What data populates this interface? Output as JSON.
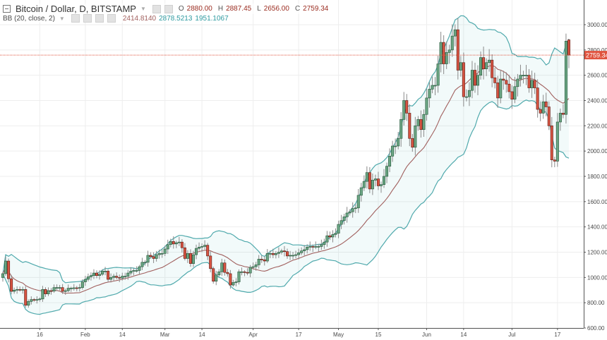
{
  "header": {
    "title": "Bitcoin / Dollar, D, BITSTAMP",
    "ohlc": {
      "o_label": "O",
      "o": "2880.00",
      "h_label": "H",
      "h": "2887.45",
      "l_label": "L",
      "l": "2656.00",
      "c_label": "C",
      "c": "2759.34"
    }
  },
  "indicator": {
    "label": "BB (20, close, 2)",
    "basis": "2414.8140",
    "upper": "2878.5213",
    "lower": "1951.1067"
  },
  "colors": {
    "up": "#6ba583",
    "up_border": "#225437",
    "down": "#d75442",
    "down_border": "#5b1a13",
    "band": "#4fa9ac",
    "basis": "#a1605e",
    "price_line": "#e0533f"
  },
  "chart_data": {
    "type": "candlestick",
    "title": "Bitcoin / Dollar, D, BITSTAMP",
    "start_date": "2017-01-03",
    "ylim": [
      600,
      3000
    ],
    "y_ticks": [
      "3000.00",
      "2800.00",
      "2600.00",
      "2400.00",
      "2200.00",
      "2000.00",
      "1800.00",
      "1600.00",
      "1400.00",
      "1200.00",
      "1000.00",
      "800.00",
      "600.00"
    ],
    "x_ticks": [
      {
        "label": "16",
        "date": "2017-01-16"
      },
      {
        "label": "Feb",
        "date": "2017-02-01"
      },
      {
        "label": "14",
        "date": "2017-02-14"
      },
      {
        "label": "Mar",
        "date": "2017-03-01"
      },
      {
        "label": "14",
        "date": "2017-03-14"
      },
      {
        "label": "Apr",
        "date": "2017-04-01"
      },
      {
        "label": "17",
        "date": "2017-04-17"
      },
      {
        "label": "May",
        "date": "2017-05-01"
      },
      {
        "label": "15",
        "date": "2017-05-15"
      },
      {
        "label": "Jun",
        "date": "2017-06-01"
      },
      {
        "label": "14",
        "date": "2017-06-14"
      },
      {
        "label": "Jul",
        "date": "2017-07-01"
      },
      {
        "label": "17",
        "date": "2017-07-17"
      }
    ],
    "last_price": "2759.34",
    "grid": true,
    "closes": [
      1030,
      1130,
      990,
      890,
      900,
      905,
      900,
      905,
      780,
      810,
      825,
      820,
      825,
      830,
      905,
      870,
      895,
      892,
      920,
      920,
      920,
      890,
      895,
      915,
      915,
      918,
      915,
      920,
      965,
      985,
      1005,
      1015,
      1035,
      1015,
      1025,
      1050,
      1050,
      985,
      1000,
      1010,
      1000,
      995,
      1010,
      1010,
      1035,
      1050,
      1055,
      1055,
      1085,
      1120,
      1120,
      1175,
      1165,
      1150,
      1180,
      1190,
      1190,
      1225,
      1260,
      1285,
      1265,
      1275,
      1280,
      1235,
      1150,
      1190,
      1110,
      1180,
      1230,
      1240,
      1245,
      1255,
      1170,
      1070,
      970,
      1020,
      1045,
      1115,
      1040,
      1030,
      940,
      960,
      965,
      1045,
      1045,
      1040,
      1035,
      1080,
      1085,
      1100,
      1145,
      1140,
      1130,
      1190,
      1190,
      1180,
      1190,
      1200,
      1210,
      1205,
      1170,
      1175,
      1175,
      1180,
      1195,
      1210,
      1220,
      1240,
      1245,
      1240,
      1245,
      1245,
      1260,
      1280,
      1330,
      1320,
      1340,
      1350,
      1420,
      1450,
      1480,
      1510,
      1520,
      1545,
      1550,
      1650,
      1710,
      1760,
      1830,
      1700,
      1770,
      1780,
      1725,
      1735,
      1800,
      1880,
      1960,
      2040,
      2040,
      2100,
      2250,
      2400,
      2300,
      2100,
      2030,
      2200,
      2250,
      2170,
      2290,
      2420,
      2490,
      2520,
      2520,
      2690,
      2860,
      2690,
      2780,
      2800,
      2910,
      2960,
      2640,
      2700,
      2430,
      2430,
      2480,
      2640,
      2520,
      2600,
      2740,
      2650,
      2700,
      2720,
      2580,
      2540,
      2420,
      2570,
      2560,
      2530,
      2470,
      2410,
      2510,
      2570,
      2600,
      2600,
      2600,
      2500,
      2560,
      2500,
      2330,
      2300,
      2390,
      2350,
      2200,
      1930,
      1920,
      2230,
      2300,
      2290,
      2870,
      2759.34
    ],
    "last_candle": {
      "open": 2880.0,
      "high": 2887.45,
      "low": 2656.0,
      "close": 2759.34
    },
    "indicator": {
      "type": "bollinger",
      "length": 20,
      "source": "close",
      "mult": 2
    }
  }
}
